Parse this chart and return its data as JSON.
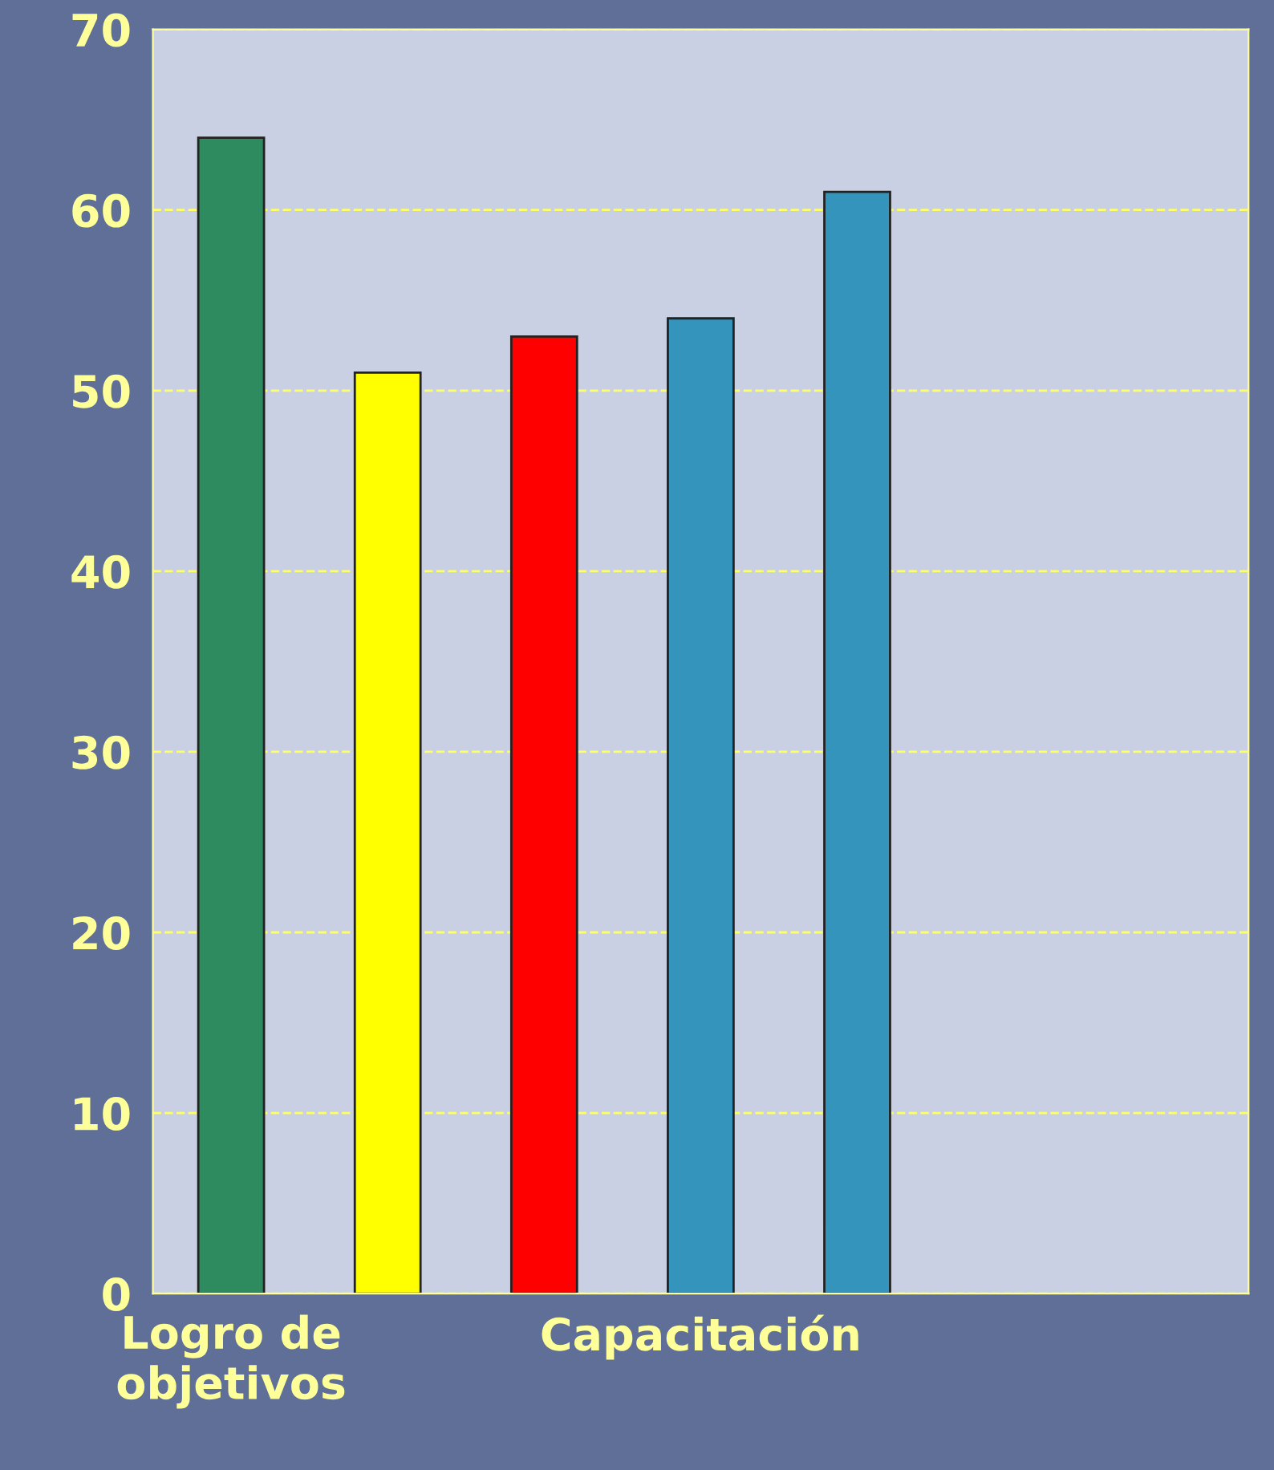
{
  "chart_data": {
    "type": "bar",
    "categories": [
      "Logro de\nobjetivos",
      null,
      null,
      "Capacitación",
      null,
      null,
      null
    ],
    "values": [
      64,
      51,
      53,
      54,
      61,
      null,
      null
    ],
    "colors": [
      "#2e8b5f",
      "#ffff00",
      "#ff0000",
      "#3494bc",
      "#3494bc",
      "#3494bc",
      "#3494bc"
    ],
    "ylim": [
      0,
      70
    ],
    "yticks": [
      0,
      10,
      20,
      30,
      40,
      50,
      60,
      70
    ],
    "grid": "y",
    "line_style": "dashed"
  }
}
